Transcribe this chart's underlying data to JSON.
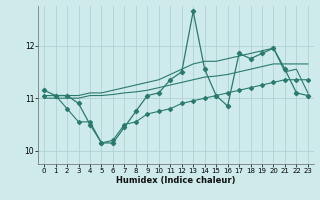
{
  "xlabel": "Humidex (Indice chaleur)",
  "background_color": "#ceeaea",
  "grid_color": "#aacece",
  "line_color": "#2a7a6e",
  "x_values": [
    0,
    1,
    2,
    3,
    4,
    5,
    6,
    7,
    8,
    9,
    10,
    11,
    12,
    13,
    14,
    15,
    16,
    17,
    18,
    19,
    20,
    21,
    22,
    23
  ],
  "line_main_y": [
    11.15,
    11.05,
    11.05,
    10.9,
    10.5,
    10.15,
    10.15,
    10.45,
    10.75,
    11.05,
    11.1,
    11.35,
    11.5,
    12.65,
    11.55,
    11.05,
    10.85,
    11.85,
    11.75,
    11.85,
    11.95,
    11.55,
    11.1,
    11.05
  ],
  "line_upper_y": [
    11.05,
    11.05,
    11.05,
    11.05,
    11.1,
    11.1,
    11.15,
    11.2,
    11.25,
    11.3,
    11.35,
    11.45,
    11.55,
    11.65,
    11.7,
    11.7,
    11.75,
    11.8,
    11.85,
    11.9,
    11.95,
    11.5,
    11.55,
    11.1
  ],
  "line_mid_y": [
    11.0,
    11.0,
    11.0,
    11.0,
    11.05,
    11.05,
    11.07,
    11.1,
    11.12,
    11.15,
    11.2,
    11.25,
    11.3,
    11.35,
    11.4,
    11.42,
    11.45,
    11.5,
    11.55,
    11.6,
    11.65,
    11.65,
    11.65,
    11.65
  ],
  "line_lower_y": [
    11.05,
    11.05,
    10.8,
    10.55,
    10.55,
    10.15,
    10.2,
    10.5,
    10.55,
    10.7,
    10.75,
    10.8,
    10.9,
    10.95,
    11.0,
    11.05,
    11.1,
    11.15,
    11.2,
    11.25,
    11.3,
    11.35,
    11.35,
    11.35
  ],
  "ylim": [
    9.75,
    12.75
  ],
  "yticks": [
    10,
    11,
    12
  ],
  "xticks": [
    0,
    1,
    2,
    3,
    4,
    5,
    6,
    7,
    8,
    9,
    10,
    11,
    12,
    13,
    14,
    15,
    16,
    17,
    18,
    19,
    20,
    21,
    22,
    23
  ]
}
